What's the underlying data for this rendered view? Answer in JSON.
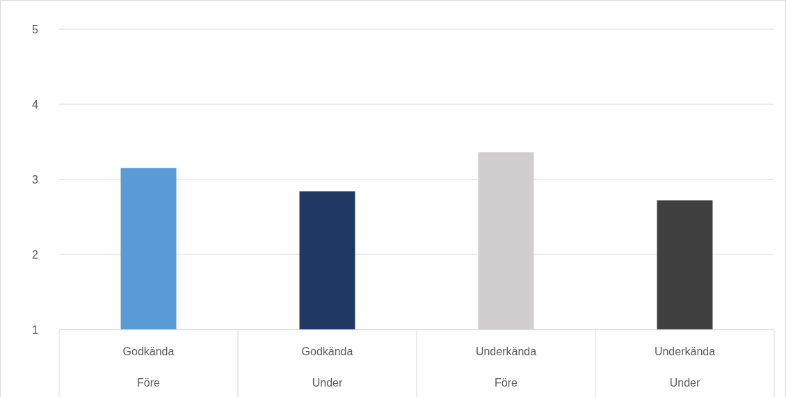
{
  "chart_data": {
    "type": "bar",
    "categories": [
      "Godkända\nFöre",
      "Godkända\nUnder",
      "Underkända\nFöre",
      "Underkända\nUnder"
    ],
    "values": [
      3.15,
      2.84,
      3.36,
      2.72
    ],
    "colors": [
      "#5b9bd5",
      "#203864",
      "#d0cece",
      "#404040"
    ],
    "ylim": [
      1,
      5
    ],
    "yticks": [
      1,
      2,
      3,
      4,
      5
    ],
    "grid": "y"
  }
}
